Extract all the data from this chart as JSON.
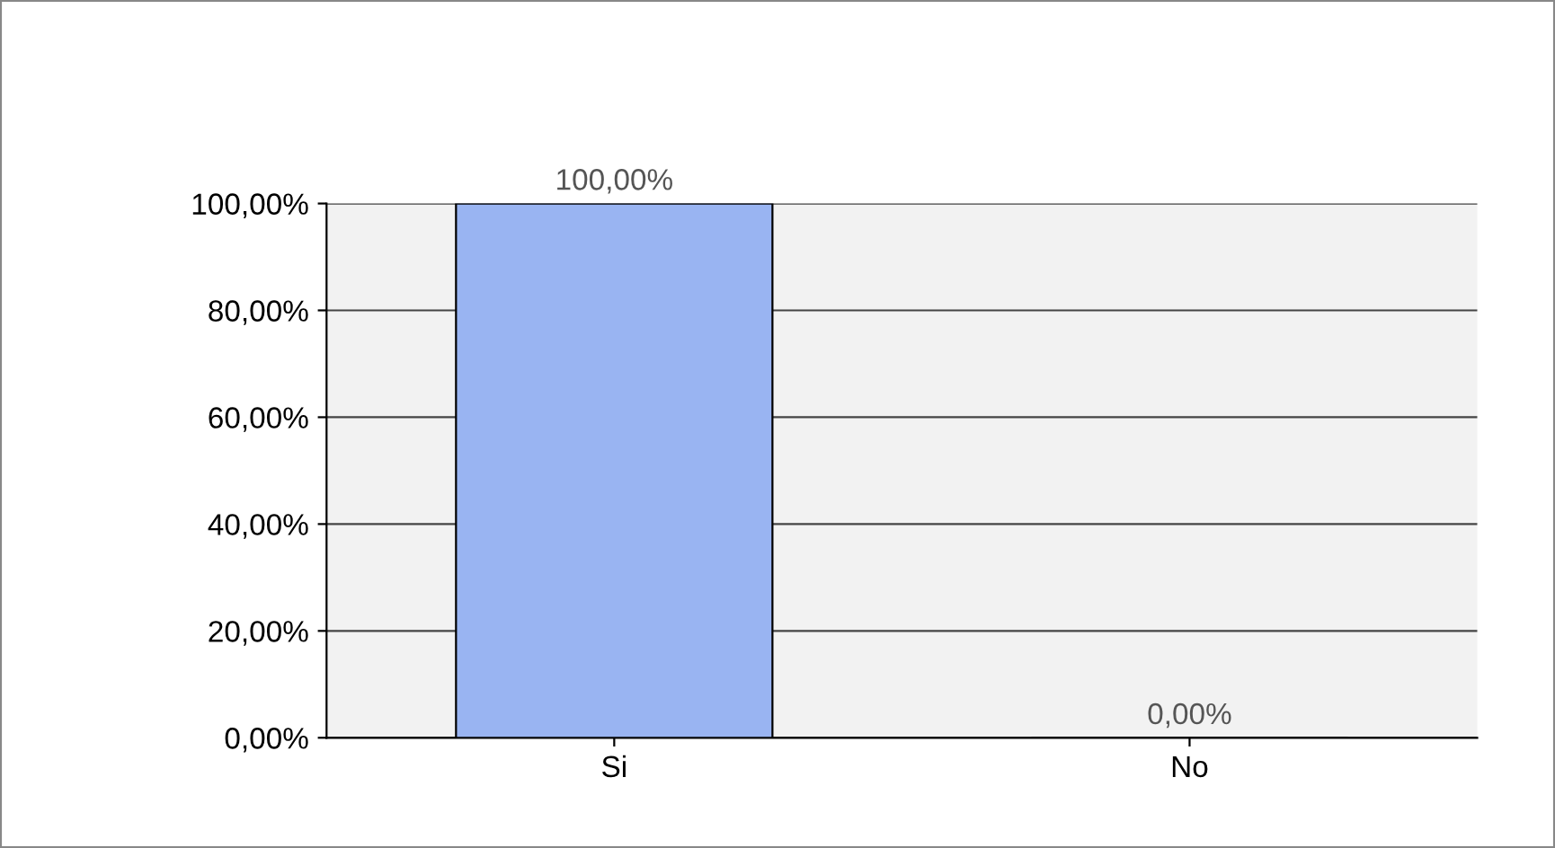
{
  "chart_data": {
    "type": "bar",
    "categories": [
      "Si",
      "No"
    ],
    "values": [
      100,
      0
    ],
    "colors": [
      "#99b4f2",
      "#6f93dd"
    ],
    "value_labels": [
      "100,00%",
      "0,00%"
    ],
    "ylim": [
      0,
      100
    ],
    "yticks": [
      {
        "value": 0,
        "label": "0,00%"
      },
      {
        "value": 20,
        "label": "20,00%"
      },
      {
        "value": 40,
        "label": "40,00%"
      },
      {
        "value": 60,
        "label": "60,00%"
      },
      {
        "value": 80,
        "label": "80,00%"
      },
      {
        "value": 100,
        "label": "100,00%"
      }
    ],
    "grid": "y",
    "legend": false
  }
}
